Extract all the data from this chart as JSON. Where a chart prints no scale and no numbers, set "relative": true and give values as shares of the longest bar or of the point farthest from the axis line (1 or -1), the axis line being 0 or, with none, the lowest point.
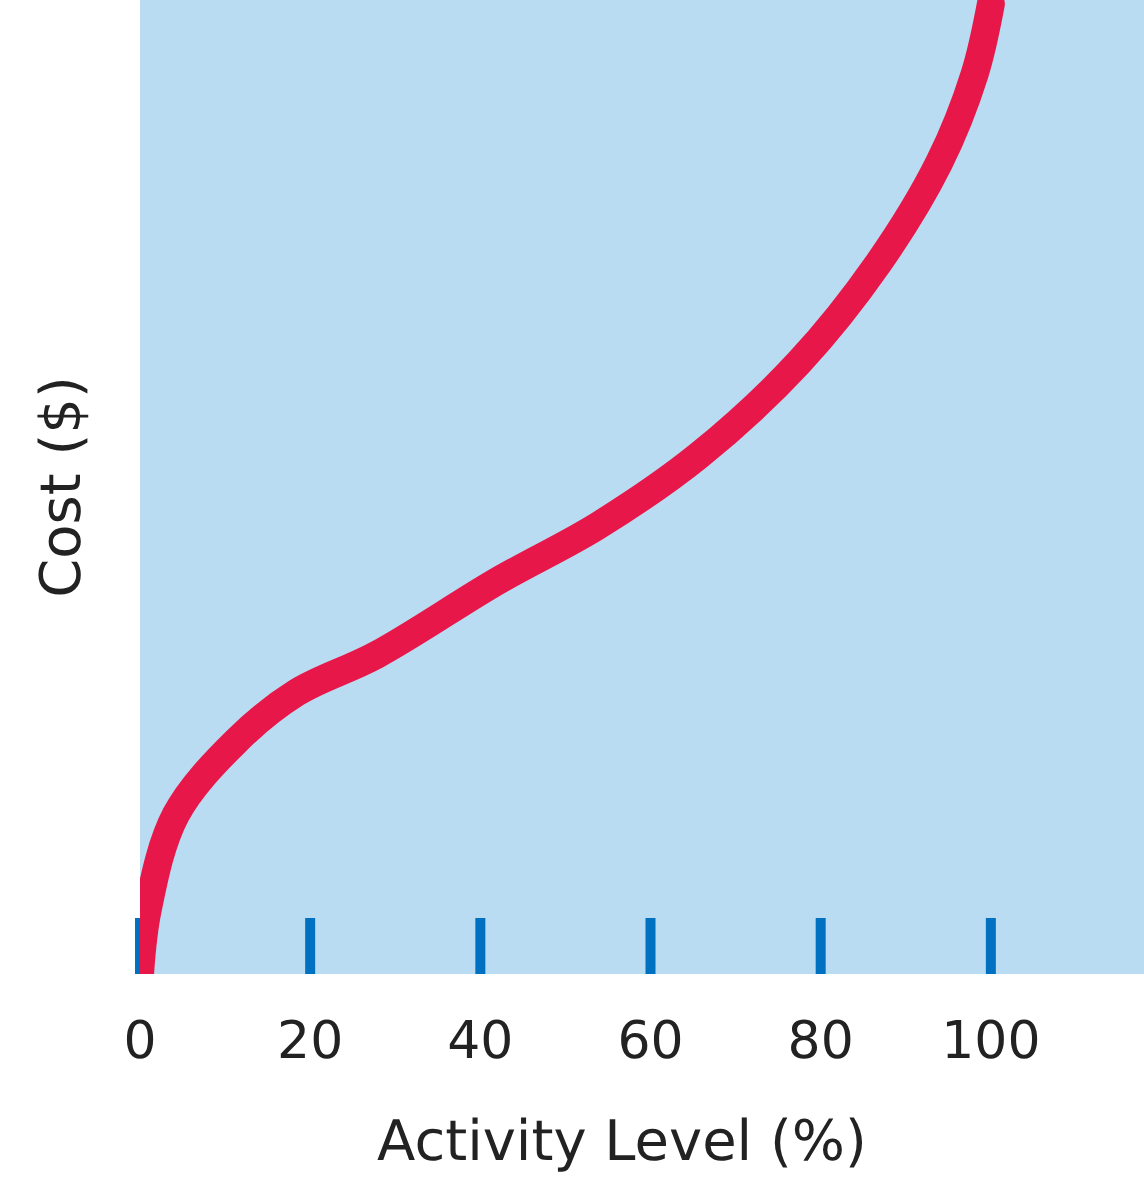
{
  "chart_data": {
    "type": "line",
    "relative": true,
    "xlabel": "Activity Level (%)",
    "ylabel": "Cost ($)",
    "x": [
      0,
      0.9,
      4.2,
      11.3,
      18.4,
      27.8,
      42,
      53.8,
      65.6,
      77.4,
      86.8,
      93.9,
      98.1,
      100
    ],
    "series": [
      {
        "color": "#e8174a",
        "values": [
          0,
          0.066,
          0.164,
          0.24,
          0.29,
          0.329,
          0.405,
          0.462,
          0.534,
          0.63,
          0.733,
          0.836,
          0.928,
          1
        ]
      }
    ],
    "xlim": [
      0,
      118
    ],
    "xticks": [
      0,
      20,
      40,
      60,
      80,
      100
    ],
    "line_style": "solid"
  }
}
